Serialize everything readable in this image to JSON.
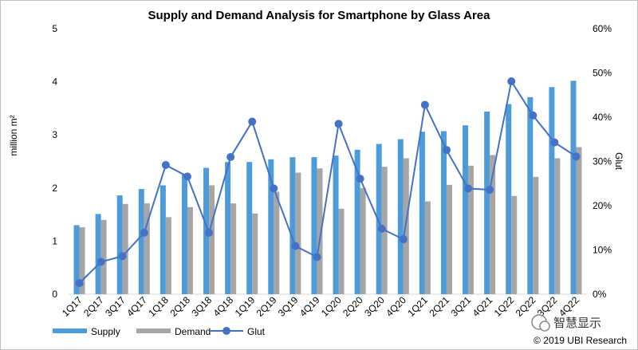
{
  "chart_data": {
    "type": "bar",
    "title": "Supply and Demand Analysis for Smartphone by Glass Area",
    "ylabel": "million m²",
    "y2label": "Glut",
    "ylim": [
      0,
      5
    ],
    "y2lim": [
      0,
      60
    ],
    "yticks": [
      "0",
      "1",
      "2",
      "3",
      "4",
      "5"
    ],
    "y2ticks": [
      "0%",
      "10%",
      "20%",
      "30%",
      "40%",
      "50%",
      "60%"
    ],
    "categories": [
      "1Q17",
      "2Q17",
      "3Q17",
      "4Q17",
      "1Q18",
      "2Q18",
      "3Q18",
      "4Q18",
      "1Q19",
      "2Q19",
      "3Q19",
      "4Q19",
      "1Q20",
      "2Q20",
      "3Q20",
      "4Q20",
      "1Q21",
      "2Q21",
      "3Q21",
      "4Q21",
      "1Q22",
      "2Q22",
      "3Q22",
      "4Q22"
    ],
    "series": [
      {
        "name": "Supply",
        "kind": "bar",
        "color": "#4e9bd9",
        "values": [
          1.3,
          1.51,
          1.86,
          1.98,
          2.05,
          2.25,
          2.38,
          2.49,
          2.49,
          2.54,
          2.58,
          2.58,
          2.61,
          2.72,
          2.83,
          2.92,
          3.06,
          3.07,
          3.18,
          3.44,
          3.58,
          3.71,
          3.9,
          4.02
        ]
      },
      {
        "name": "Demand",
        "kind": "bar",
        "color": "#a6a6a6",
        "values": [
          1.26,
          1.4,
          1.7,
          1.71,
          1.45,
          1.64,
          2.05,
          1.71,
          1.52,
          1.93,
          2.29,
          2.37,
          1.61,
          2.0,
          2.4,
          2.56,
          1.75,
          2.06,
          2.42,
          2.62,
          1.85,
          2.21,
          2.56,
          2.77
        ]
      },
      {
        "name": "Glut",
        "kind": "line",
        "axis": "right",
        "color": "#4472c4",
        "values": [
          2.5,
          7.3,
          8.6,
          13.9,
          29.2,
          26.6,
          13.9,
          31.0,
          39.0,
          23.9,
          10.9,
          8.4,
          38.5,
          26.1,
          14.8,
          12.4,
          42.8,
          32.6,
          23.9,
          23.6,
          48.1,
          40.4,
          34.3,
          31.1
        ]
      }
    ],
    "legend": [
      "Supply",
      "Demand",
      "Glut"
    ],
    "legend_position": "bottom-left"
  },
  "watermark": "智慧显示",
  "copyright": "© 2019 UBI Research"
}
